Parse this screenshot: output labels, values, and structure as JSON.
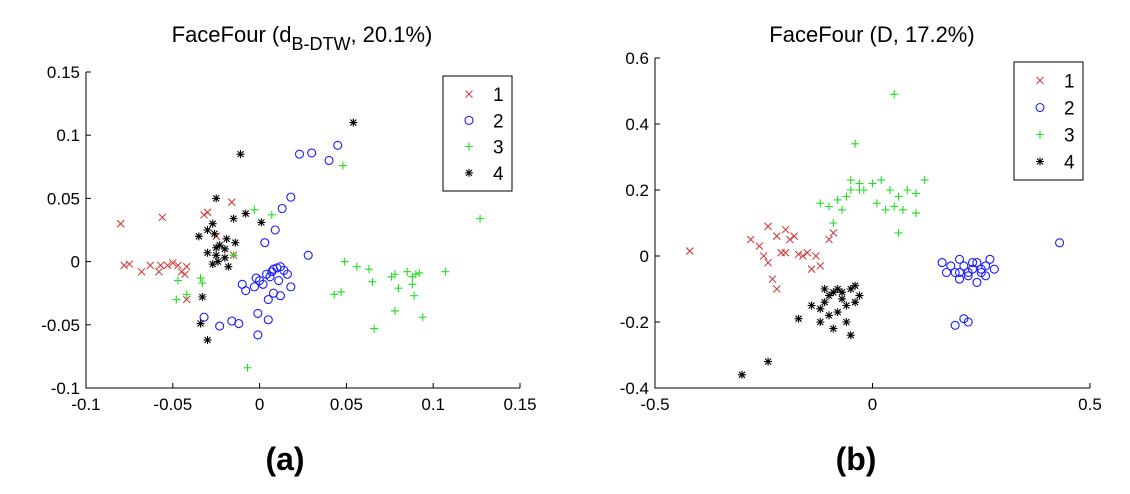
{
  "chart_data": [
    {
      "type": "scatter",
      "title": "FaceFour (d",
      "title_sub": "B-DTW",
      "title_rest": ", 20.1%)",
      "panel_label": "(a)",
      "xlim": [
        -0.1,
        0.15
      ],
      "ylim": [
        -0.1,
        0.15
      ],
      "xticks": [
        "-0.1",
        "-0.05",
        "0",
        "0.05",
        "0.1",
        "0.15"
      ],
      "xtick_values": [
        -0.1,
        -0.05,
        0,
        0.05,
        0.1,
        0.15
      ],
      "yticks": [
        "-0.1",
        "-0.05",
        "0",
        "0.05",
        "0.1",
        "0.15"
      ],
      "ytick_values": [
        -0.1,
        -0.05,
        0,
        0.05,
        0.1,
        0.15
      ],
      "grid": false,
      "legend_position": "top-right",
      "series": [
        {
          "name": "1",
          "marker": "x",
          "color": "#d04040",
          "points": [
            [
              -0.08,
              0.03
            ],
            [
              -0.078,
              -0.003
            ],
            [
              -0.075,
              -0.002
            ],
            [
              -0.068,
              -0.008
            ],
            [
              -0.063,
              -0.003
            ],
            [
              -0.058,
              -0.008
            ],
            [
              -0.057,
              -0.003
            ],
            [
              -0.056,
              0.035
            ],
            [
              -0.053,
              -0.003
            ],
            [
              -0.05,
              -0.001
            ],
            [
              -0.047,
              -0.003
            ],
            [
              -0.045,
              -0.008
            ],
            [
              -0.043,
              -0.01
            ],
            [
              -0.042,
              -0.004
            ],
            [
              -0.042,
              -0.03
            ],
            [
              -0.032,
              0.037
            ],
            [
              -0.03,
              0.039
            ],
            [
              -0.016,
              0.047
            ],
            [
              -0.025,
              0.02
            ],
            [
              -0.015,
              0.005
            ]
          ]
        },
        {
          "name": "2",
          "marker": "o",
          "color": "#1a1aff",
          "points": [
            [
              0.023,
              0.085
            ],
            [
              0.03,
              0.086
            ],
            [
              0.04,
              0.08
            ],
            [
              0.045,
              0.092
            ],
            [
              0.018,
              0.051
            ],
            [
              0.013,
              0.042
            ],
            [
              0.009,
              0.025
            ],
            [
              0.003,
              0.015
            ],
            [
              0.028,
              0.005
            ],
            [
              -0.002,
              -0.013
            ],
            [
              0.0,
              -0.015
            ],
            [
              0.002,
              -0.018
            ],
            [
              0.004,
              -0.01
            ],
            [
              0.006,
              -0.012
            ],
            [
              0.007,
              -0.008
            ],
            [
              0.008,
              -0.006
            ],
            [
              0.01,
              -0.005
            ],
            [
              0.012,
              -0.004
            ],
            [
              0.014,
              -0.007
            ],
            [
              0.011,
              -0.015
            ],
            [
              0.016,
              -0.01
            ],
            [
              0.018,
              -0.02
            ],
            [
              0.008,
              -0.025
            ],
            [
              0.005,
              -0.03
            ],
            [
              0.012,
              -0.027
            ],
            [
              -0.003,
              -0.02
            ],
            [
              -0.01,
              -0.018
            ],
            [
              -0.008,
              -0.023
            ],
            [
              -0.032,
              -0.044
            ],
            [
              -0.023,
              -0.051
            ],
            [
              -0.016,
              -0.047
            ],
            [
              -0.012,
              -0.049
            ],
            [
              -0.001,
              -0.041
            ],
            [
              0.005,
              -0.046
            ],
            [
              -0.001,
              -0.058
            ]
          ]
        },
        {
          "name": "3",
          "marker": "+",
          "color": "#22dd22",
          "points": [
            [
              0.048,
              0.076
            ],
            [
              -0.003,
              0.041
            ],
            [
              0.007,
              0.037
            ],
            [
              0.127,
              0.034
            ],
            [
              -0.015,
              0.005
            ],
            [
              -0.047,
              -0.015
            ],
            [
              -0.034,
              -0.013
            ],
            [
              -0.033,
              -0.017
            ],
            [
              -0.048,
              -0.03
            ],
            [
              -0.042,
              -0.026
            ],
            [
              0.049,
              0.0
            ],
            [
              0.056,
              -0.004
            ],
            [
              0.063,
              -0.006
            ],
            [
              0.047,
              -0.024
            ],
            [
              0.043,
              -0.026
            ],
            [
              0.065,
              -0.016
            ],
            [
              0.076,
              -0.012
            ],
            [
              0.078,
              -0.01
            ],
            [
              0.085,
              -0.008
            ],
            [
              0.088,
              -0.012
            ],
            [
              0.09,
              -0.01
            ],
            [
              0.092,
              -0.009
            ],
            [
              0.088,
              -0.018
            ],
            [
              0.08,
              -0.021
            ],
            [
              0.089,
              -0.027
            ],
            [
              0.107,
              -0.008
            ],
            [
              0.078,
              -0.039
            ],
            [
              0.094,
              -0.044
            ],
            [
              0.066,
              -0.053
            ],
            [
              -0.007,
              -0.084
            ]
          ]
        },
        {
          "name": "4",
          "marker": "*",
          "color": "#000000",
          "points": [
            [
              0.054,
              0.11
            ],
            [
              -0.011,
              0.085
            ],
            [
              -0.025,
              0.05
            ],
            [
              -0.015,
              0.034
            ],
            [
              -0.008,
              0.038
            ],
            [
              0.001,
              0.031
            ],
            [
              -0.027,
              0.03
            ],
            [
              -0.03,
              0.025
            ],
            [
              -0.026,
              0.022
            ],
            [
              -0.035,
              0.02
            ],
            [
              -0.019,
              0.018
            ],
            [
              -0.014,
              0.015
            ],
            [
              -0.023,
              0.013
            ],
            [
              -0.02,
              0.01
            ],
            [
              -0.025,
              0.011
            ],
            [
              -0.03,
              0.007
            ],
            [
              -0.025,
              0.005
            ],
            [
              -0.02,
              0.003
            ],
            [
              -0.027,
              -0.002
            ],
            [
              -0.018,
              -0.004
            ],
            [
              -0.024,
              0.0
            ],
            [
              -0.033,
              -0.028
            ],
            [
              -0.034,
              -0.049
            ],
            [
              -0.03,
              -0.062
            ]
          ]
        }
      ]
    },
    {
      "type": "scatter",
      "title": "FaceFour (D, 17.2%)",
      "panel_label": "(b)",
      "xlim": [
        -0.5,
        0.5
      ],
      "ylim": [
        -0.4,
        0.6
      ],
      "xticks": [
        "-0.5",
        "0",
        "0.5"
      ],
      "xtick_values": [
        -0.5,
        0,
        0.5
      ],
      "yticks": [
        "-0.4",
        "-0.2",
        "0",
        "0.2",
        "0.4",
        "0.6"
      ],
      "ytick_values": [
        -0.4,
        -0.2,
        0,
        0.2,
        0.4,
        0.6
      ],
      "grid": false,
      "legend_position": "top-right",
      "series": [
        {
          "name": "1",
          "marker": "x",
          "color": "#d04040",
          "points": [
            [
              -0.42,
              0.015
            ],
            [
              -0.28,
              0.05
            ],
            [
              -0.26,
              0.03
            ],
            [
              -0.24,
              0.09
            ],
            [
              -0.22,
              0.06
            ],
            [
              -0.21,
              0.01
            ],
            [
              -0.2,
              0.08
            ],
            [
              -0.19,
              0.05
            ],
            [
              -0.18,
              0.06
            ],
            [
              -0.16,
              0.0
            ],
            [
              -0.15,
              0.01
            ],
            [
              -0.13,
              0.0
            ],
            [
              -0.12,
              -0.03
            ],
            [
              -0.24,
              -0.02
            ],
            [
              -0.23,
              -0.07
            ],
            [
              -0.22,
              -0.1
            ],
            [
              -0.1,
              0.05
            ],
            [
              -0.09,
              0.07
            ],
            [
              -0.17,
              0.005
            ],
            [
              -0.14,
              -0.04
            ],
            [
              -0.25,
              0.0
            ],
            [
              -0.2,
              0.01
            ]
          ]
        },
        {
          "name": "2",
          "marker": "o",
          "color": "#1a1aff",
          "points": [
            [
              0.43,
              0.04
            ],
            [
              0.16,
              -0.02
            ],
            [
              0.18,
              -0.03
            ],
            [
              0.19,
              -0.05
            ],
            [
              0.2,
              -0.01
            ],
            [
              0.21,
              -0.03
            ],
            [
              0.22,
              -0.05
            ],
            [
              0.23,
              -0.04
            ],
            [
              0.24,
              -0.02
            ],
            [
              0.25,
              -0.04
            ],
            [
              0.26,
              -0.03
            ],
            [
              0.27,
              -0.01
            ],
            [
              0.28,
              -0.04
            ],
            [
              0.2,
              -0.07
            ],
            [
              0.22,
              -0.06
            ],
            [
              0.24,
              -0.08
            ],
            [
              0.19,
              -0.21
            ],
            [
              0.21,
              -0.19
            ],
            [
              0.22,
              -0.2
            ],
            [
              0.17,
              -0.05
            ],
            [
              0.23,
              -0.02
            ],
            [
              0.2,
              -0.05
            ],
            [
              0.25,
              -0.05
            ],
            [
              0.26,
              -0.06
            ]
          ]
        },
        {
          "name": "3",
          "marker": "+",
          "color": "#22dd22",
          "points": [
            [
              0.05,
              0.49
            ],
            [
              -0.04,
              0.34
            ],
            [
              -0.05,
              0.23
            ],
            [
              -0.03,
              0.22
            ],
            [
              -0.02,
              0.2
            ],
            [
              0.0,
              0.22
            ],
            [
              0.02,
              0.23
            ],
            [
              0.04,
              0.2
            ],
            [
              0.06,
              0.18
            ],
            [
              0.08,
              0.2
            ],
            [
              0.1,
              0.19
            ],
            [
              0.12,
              0.23
            ],
            [
              -0.06,
              0.18
            ],
            [
              -0.08,
              0.17
            ],
            [
              -0.1,
              0.15
            ],
            [
              -0.12,
              0.16
            ],
            [
              -0.09,
              0.1
            ],
            [
              -0.05,
              0.2
            ],
            [
              0.01,
              0.16
            ],
            [
              0.03,
              0.14
            ],
            [
              0.05,
              0.15
            ],
            [
              0.07,
              0.14
            ],
            [
              0.1,
              0.13
            ],
            [
              0.06,
              0.07
            ],
            [
              -0.03,
              0.2
            ],
            [
              -0.07,
              0.14
            ]
          ]
        },
        {
          "name": "4",
          "marker": "*",
          "color": "#000000",
          "points": [
            [
              -0.3,
              -0.36
            ],
            [
              -0.24,
              -0.32
            ],
            [
              -0.17,
              -0.19
            ],
            [
              -0.14,
              -0.15
            ],
            [
              -0.12,
              -0.16
            ],
            [
              -0.11,
              -0.14
            ],
            [
              -0.1,
              -0.12
            ],
            [
              -0.09,
              -0.11
            ],
            [
              -0.08,
              -0.1
            ],
            [
              -0.07,
              -0.13
            ],
            [
              -0.06,
              -0.15
            ],
            [
              -0.05,
              -0.1
            ],
            [
              -0.04,
              -0.09
            ],
            [
              -0.03,
              -0.12
            ],
            [
              -0.06,
              -0.2
            ],
            [
              -0.05,
              -0.24
            ],
            [
              -0.1,
              -0.18
            ],
            [
              -0.12,
              -0.2
            ],
            [
              -0.08,
              -0.17
            ],
            [
              -0.09,
              -0.22
            ],
            [
              -0.04,
              -0.14
            ],
            [
              -0.11,
              -0.1
            ],
            [
              -0.07,
              -0.11
            ]
          ]
        }
      ]
    }
  ]
}
